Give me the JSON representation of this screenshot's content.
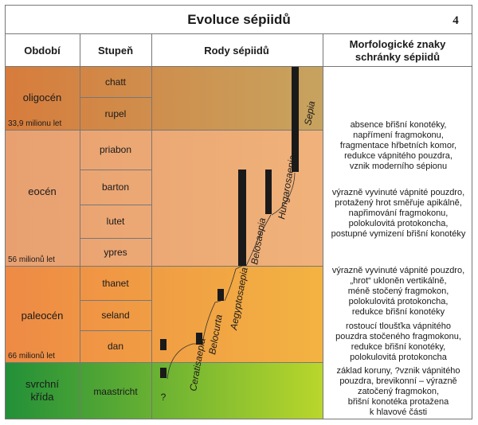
{
  "header": {
    "title": "Evoluce sépiidů",
    "page_number": "4",
    "col_period": "Období",
    "col_stage": "Stupeň",
    "col_genera": "Rody sépiidů",
    "col_morph_line1": "Morfologické znaky",
    "col_morph_line2": "schránky sépiidů"
  },
  "periods": [
    {
      "name": "oligocén",
      "boundary": "33,9 milionu let"
    },
    {
      "name": "eocén",
      "boundary": "56 milionů let"
    },
    {
      "name": "paleocén",
      "boundary": "66 milionů let"
    },
    {
      "name_line1": "svrchní",
      "name_line2": "křída"
    }
  ],
  "stages": [
    "chatt",
    "rupel",
    "priabon",
    "barton",
    "lutet",
    "ypres",
    "thanet",
    "seland",
    "dan",
    "maastricht"
  ],
  "genera": [
    "Sepia",
    "Hungarosaepia",
    "Belosaepia",
    "Aegyptosaepia",
    "Belocurta",
    "Ceratisaepia"
  ],
  "uncertain_origin": "?",
  "morphology": [
    [
      "absence břišní konotéky,",
      "napřímení fragmokonu,",
      "fragmentace hřbetních komor,",
      "redukce vápnitého pouzdra,",
      "vznik moderního sépionu"
    ],
    [
      "výrazně vyvinuté vápnité pouzdro,",
      "protažený hrot směřuje apikálně,",
      "napřimování fragmokonu,",
      "polokulovitá protokoncha,",
      "postupné vymizení břišní konotéky"
    ],
    [
      "výrazně vyvinuté vápnité pouzdro,",
      "„hrot“ ukloněn vertikálně,",
      "méně stočený fragmokon,",
      "polokulovitá protokoncha,",
      "redukce břišní konotéky"
    ],
    [
      "rostoucí tloušťka vápnitého",
      "pouzdra stočeného fragmokonu,",
      "redukce břišní konotéky,",
      "polokulovitá protokoncha"
    ],
    [
      "základ koruny, ?vznik vápnitého",
      "pouzdra, brevikonní – výrazně",
      "zatočený fragmokon,",
      "břišní konotéka protažena",
      "k hlavové části"
    ]
  ],
  "colors": {
    "oligocene": "#d87e3e",
    "eocene": "#e9a574",
    "paleocene": "#ef8c45",
    "cretaceous": "#2f9d3e",
    "range_bar": "#1a1a1a"
  }
}
